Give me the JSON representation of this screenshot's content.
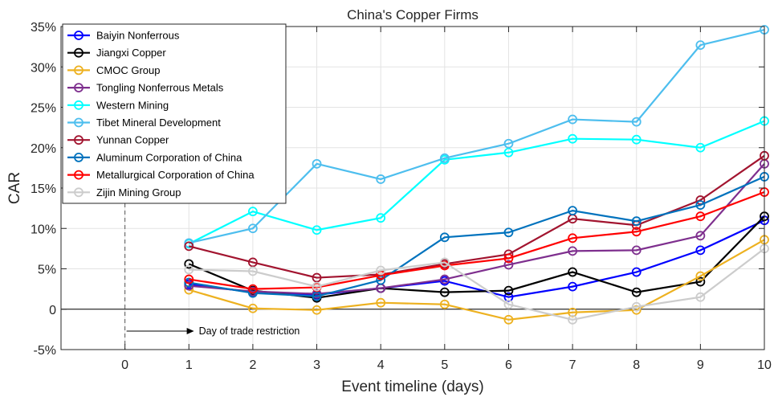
{
  "chart_data": {
    "type": "line",
    "title": "China's Copper Firms",
    "xlabel": "Event timeline (days)",
    "ylabel": "CAR",
    "x_ticks": [
      "0",
      "1",
      "2",
      "3",
      "4",
      "5",
      "6",
      "7",
      "8",
      "9",
      "10"
    ],
    "y_ticks": [
      "-5%",
      "0",
      "5%",
      "10%",
      "15%",
      "20%",
      "25%",
      "30%",
      "35%"
    ],
    "xlim": [
      -1,
      10
    ],
    "ylim": [
      -5,
      35
    ],
    "grid": true,
    "legend_position": "top-left",
    "x": [
      1,
      2,
      3,
      4,
      5,
      6,
      7,
      8,
      9,
      10
    ],
    "series": [
      {
        "name": "Baiyin Nonferrous",
        "color": "#0000ff",
        "values": [
          3.1,
          2.1,
          1.8,
          2.6,
          3.5,
          1.5,
          2.8,
          4.6,
          7.3,
          11.0
        ]
      },
      {
        "name": "Jiangxi Copper",
        "color": "#000000",
        "values": [
          5.6,
          2.3,
          1.4,
          2.6,
          2.1,
          2.3,
          4.6,
          2.1,
          3.4,
          11.5
        ]
      },
      {
        "name": "CMOC Group",
        "color": "#edb120",
        "values": [
          2.4,
          0.1,
          -0.1,
          0.8,
          0.6,
          -1.3,
          -0.4,
          -0.1,
          4.1,
          8.6
        ]
      },
      {
        "name": "Tongling Nonferrous Metals",
        "color": "#7e2f8e",
        "values": [
          2.9,
          2.2,
          1.9,
          2.6,
          3.7,
          5.5,
          7.2,
          7.3,
          9.1,
          18.0
        ]
      },
      {
        "name": "Western Mining",
        "color": "#00ffff",
        "values": [
          8.1,
          12.1,
          9.8,
          11.3,
          18.5,
          19.4,
          21.1,
          21.0,
          20.0,
          23.3
        ]
      },
      {
        "name": "Tibet Mineral Development",
        "color": "#4dbeee",
        "values": [
          8.2,
          10.0,
          18.0,
          16.1,
          18.7,
          20.5,
          23.5,
          23.2,
          32.7,
          34.6
        ]
      },
      {
        "name": "Yunnan Copper",
        "color": "#a2142f",
        "values": [
          7.8,
          5.8,
          3.9,
          4.3,
          5.6,
          6.8,
          11.2,
          10.4,
          13.5,
          19.0
        ]
      },
      {
        "name": "Aluminum Corporation of China",
        "color": "#0072bd",
        "values": [
          3.3,
          2.0,
          1.6,
          3.6,
          8.9,
          9.5,
          12.2,
          10.9,
          12.9,
          16.4
        ]
      },
      {
        "name": "Metallurgical Corporation of China",
        "color": "#ff0000",
        "values": [
          3.7,
          2.5,
          2.7,
          4.2,
          5.4,
          6.3,
          8.8,
          9.6,
          11.5,
          14.5
        ]
      },
      {
        "name": "Zijin Mining Group",
        "color": "#cccccc",
        "values": [
          4.9,
          4.7,
          2.8,
          4.8,
          5.8,
          0.6,
          -1.3,
          0.3,
          1.5,
          7.5
        ]
      }
    ],
    "annotation": {
      "text": "Day of trade restriction",
      "x": 0
    }
  }
}
